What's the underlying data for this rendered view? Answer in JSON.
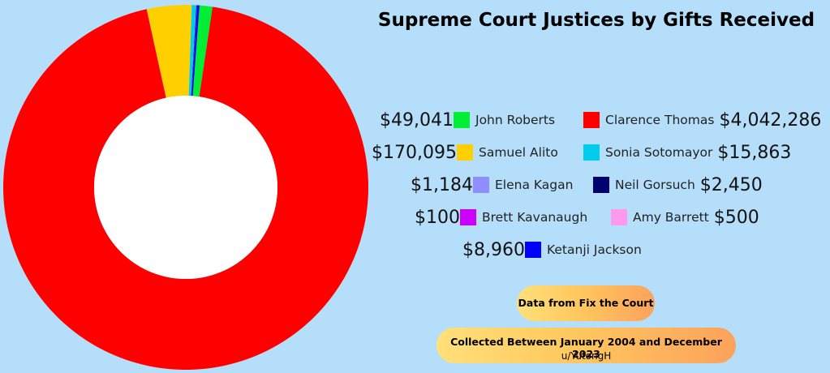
{
  "chart_data": {
    "type": "pie",
    "title": "Supreme Court Justices by Gifts Received",
    "slice_order": [
      "John Roberts",
      "Clarence Thomas",
      "Samuel Alito",
      "Sonia Sotomayor",
      "Elena Kagan",
      "Neil Gorsuch",
      "Brett Kavanaugh",
      "Amy Barrett",
      "Ketanji Jackson"
    ],
    "slices": [
      {
        "name": "John Roberts",
        "value": 49041,
        "label": "$49,041",
        "color": "#00ee33"
      },
      {
        "name": "Clarence Thomas",
        "value": 4042286,
        "label": "$4,042,286",
        "color": "#ff0000"
      },
      {
        "name": "Samuel Alito",
        "value": 170095,
        "label": "$170,095",
        "color": "#ffd000"
      },
      {
        "name": "Sonia Sotomayor",
        "value": 15863,
        "label": "$15,863",
        "color": "#00ccee"
      },
      {
        "name": "Elena Kagan",
        "value": 1184,
        "label": "$1,184",
        "color": "#8e8eff"
      },
      {
        "name": "Neil Gorsuch",
        "value": 2450,
        "label": "$2,450",
        "color": "#00006e"
      },
      {
        "name": "Brett Kavanaugh",
        "value": 100,
        "label": "$100",
        "color": "#cc00ff"
      },
      {
        "name": "Amy Barrett",
        "value": 500,
        "label": "$500",
        "color": "#ff99ee"
      },
      {
        "name": "Ketanji Jackson",
        "value": 8960,
        "label": "$8,960",
        "color": "#0000ff"
      }
    ],
    "legend_placement": "right"
  },
  "legend_rows": [
    {
      "left": 0,
      "right": 1
    },
    {
      "left": 2,
      "right": 3
    },
    {
      "left": 4,
      "right": 5
    },
    {
      "left": 6,
      "right": 7
    },
    {
      "left": 8,
      "right": null
    }
  ],
  "notes": {
    "source": "Data from Fix the Court",
    "period": "Collected Between January 2004 and December 2023",
    "credit": "u/YutongH"
  }
}
